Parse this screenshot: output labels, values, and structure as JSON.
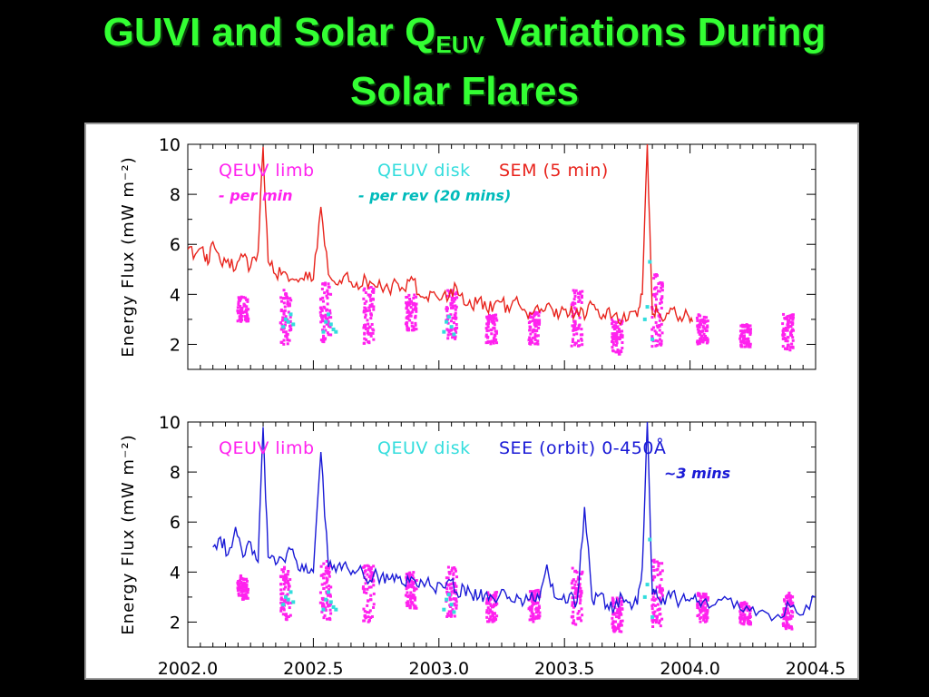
{
  "title": {
    "part1": "GUVI and Solar Q",
    "subscript": "EUV",
    "part2": " Variations During",
    "line2": "Solar Flares"
  },
  "colors": {
    "title_green": "#33ff33",
    "qeuv_limb": "#ff22ee",
    "qeuv_disk": "#33dddd",
    "sem": "#e8231c",
    "see": "#1a1ad6"
  },
  "chart_data": [
    {
      "type": "scatter",
      "panel": "top",
      "ylabel": "Energy Flux (mW m⁻²)",
      "xlim": [
        2002.0,
        2004.5
      ],
      "ylim": [
        1,
        10
      ],
      "y_ticks": [
        "2",
        "4",
        "6",
        "8",
        "10"
      ],
      "legend": [
        {
          "label": "QEUV limb",
          "color": "#ff22ee"
        },
        {
          "label": "QEUV disk",
          "color": "#33dddd"
        },
        {
          "label": "SEM (5 min)",
          "color": "#e8231c"
        }
      ],
      "annotations": [
        {
          "text": "- per min",
          "color": "#ff22ee"
        },
        {
          "text": "- per rev (20 mins)",
          "color": "#00bbbb"
        }
      ],
      "series": [
        {
          "name": "SEM (5 min)",
          "kind": "line",
          "color": "#e8231c",
          "x": [
            2002.0,
            2002.03,
            2002.06,
            2002.08,
            2002.1,
            2002.13,
            2002.16,
            2002.19,
            2002.22,
            2002.25,
            2002.28,
            2002.3,
            2002.32,
            2002.35,
            2002.38,
            2002.41,
            2002.44,
            2002.47,
            2002.5,
            2002.53,
            2002.56,
            2002.59,
            2002.62,
            2002.65,
            2002.68,
            2002.71,
            2002.74,
            2002.77,
            2002.8,
            2002.83,
            2002.86,
            2002.89,
            2002.92,
            2002.95,
            2002.98,
            2003.01,
            2003.04,
            2003.07,
            2003.1,
            2003.13,
            2003.16,
            2003.19,
            2003.22,
            2003.25,
            2003.28,
            2003.31,
            2003.34,
            2003.37,
            2003.4,
            2003.43,
            2003.46,
            2003.49,
            2003.52,
            2003.55,
            2003.58,
            2003.61,
            2003.64,
            2003.67,
            2003.7,
            2003.73,
            2003.76,
            2003.79,
            2003.81,
            2003.83,
            2003.85,
            2003.87,
            2003.9,
            2003.93,
            2003.96,
            2003.99,
            2004.01
          ],
          "y": [
            5.8,
            5.6,
            5.9,
            5.2,
            6.1,
            5.3,
            5.4,
            5.0,
            5.5,
            5.1,
            5.7,
            9.9,
            5.3,
            4.8,
            4.9,
            4.6,
            4.5,
            4.9,
            4.6,
            7.5,
            4.8,
            4.4,
            4.7,
            4.5,
            4.2,
            4.6,
            4.4,
            4.3,
            4.2,
            4.5,
            4.2,
            4.7,
            4.0,
            3.9,
            4.1,
            3.8,
            3.9,
            4.3,
            3.6,
            3.5,
            3.8,
            3.4,
            3.6,
            3.7,
            3.3,
            3.9,
            3.4,
            3.2,
            3.3,
            3.6,
            3.1,
            3.5,
            3.2,
            3.4,
            3.0,
            3.6,
            3.1,
            3.4,
            3.2,
            3.0,
            3.3,
            3.1,
            4.0,
            10.0,
            3.2,
            3.3,
            3.0,
            3.4,
            3.1,
            3.2,
            2.9
          ]
        },
        {
          "name": "QEUV limb",
          "kind": "cluster",
          "color": "#ff22ee",
          "x": [
            2002.22,
            2002.39,
            2002.55,
            2002.72,
            2002.89,
            2003.05,
            2003.21,
            2003.38,
            2003.55,
            2003.71,
            2003.87,
            2004.05,
            2004.22,
            2004.39
          ],
          "ymin": [
            2.9,
            2.0,
            2.1,
            2.0,
            2.5,
            2.2,
            2.0,
            2.0,
            1.9,
            1.6,
            1.8,
            2.0,
            1.9,
            1.7
          ],
          "ymax": [
            3.9,
            4.2,
            4.5,
            4.3,
            4.0,
            4.2,
            3.2,
            3.3,
            4.2,
            3.0,
            4.8,
            3.2,
            2.8,
            3.2
          ]
        },
        {
          "name": "QEUV disk",
          "kind": "points",
          "color": "#33dddd",
          "x": [
            2002.38,
            2002.39,
            2002.4,
            2002.41,
            2002.42,
            2002.54,
            2002.55,
            2002.56,
            2002.57,
            2002.58,
            2002.59,
            2003.02,
            2003.03,
            2003.04,
            2003.05,
            2003.06,
            2003.82,
            2003.83,
            2003.84,
            2003.85
          ],
          "y": [
            2.7,
            3.0,
            2.9,
            3.2,
            2.8,
            2.5,
            2.9,
            3.2,
            2.8,
            2.6,
            2.5,
            2.5,
            2.9,
            3.1,
            2.7,
            2.4,
            3.0,
            3.5,
            5.3,
            2.2
          ]
        }
      ]
    },
    {
      "type": "scatter",
      "panel": "bottom",
      "ylabel": "Energy Flux (mW m⁻²)",
      "xlim": [
        2002.0,
        2004.5
      ],
      "ylim": [
        1,
        10
      ],
      "y_ticks": [
        "2",
        "4",
        "6",
        "8",
        "10"
      ],
      "x_ticks": [
        "2002.0",
        "2002.5",
        "2003.0",
        "2003.5",
        "2004.0",
        "2004.5"
      ],
      "legend": [
        {
          "label": "QEUV limb",
          "color": "#ff22ee"
        },
        {
          "label": "QEUV disk",
          "color": "#33dddd"
        },
        {
          "label": "SEE (orbit) 0-450Å",
          "color": "#1a1ad6"
        }
      ],
      "annotations": [
        {
          "text": "~3 mins",
          "color": "#1a1ad6"
        }
      ],
      "series": [
        {
          "name": "SEE (orbit) 0-450Å",
          "kind": "line",
          "color": "#1a1ad6",
          "x": [
            2002.1,
            2002.13,
            2002.16,
            2002.19,
            2002.22,
            2002.25,
            2002.28,
            2002.3,
            2002.32,
            2002.35,
            2002.38,
            2002.41,
            2002.44,
            2002.47,
            2002.5,
            2002.53,
            2002.56,
            2002.59,
            2002.62,
            2002.65,
            2002.68,
            2002.71,
            2002.74,
            2002.77,
            2002.8,
            2002.83,
            2002.86,
            2002.89,
            2002.92,
            2002.95,
            2002.98,
            2003.01,
            2003.04,
            2003.07,
            2003.1,
            2003.13,
            2003.16,
            2003.19,
            2003.22,
            2003.25,
            2003.28,
            2003.31,
            2003.34,
            2003.37,
            2003.4,
            2003.43,
            2003.46,
            2003.49,
            2003.52,
            2003.55,
            2003.58,
            2003.61,
            2003.64,
            2003.67,
            2003.7,
            2003.73,
            2003.76,
            2003.79,
            2003.81,
            2003.83,
            2003.85,
            2003.87,
            2003.9,
            2003.93,
            2003.96,
            2003.99,
            2004.02,
            2004.05,
            2004.1,
            2004.15,
            2004.2,
            2004.25,
            2004.3,
            2004.35,
            2004.4,
            2004.45,
            2004.5
          ],
          "y": [
            5.0,
            5.4,
            4.7,
            5.8,
            4.6,
            5.2,
            4.4,
            9.8,
            4.6,
            4.3,
            4.5,
            4.9,
            4.1,
            4.3,
            4.0,
            8.8,
            4.2,
            4.0,
            4.3,
            3.9,
            4.1,
            3.7,
            3.9,
            3.8,
            3.7,
            3.9,
            3.5,
            3.8,
            3.4,
            3.6,
            3.3,
            3.5,
            3.7,
            3.2,
            3.4,
            3.1,
            3.0,
            3.2,
            2.9,
            3.3,
            3.0,
            3.1,
            2.8,
            3.2,
            2.9,
            4.3,
            3.0,
            2.9,
            3.1,
            2.8,
            6.6,
            2.9,
            3.1,
            2.7,
            2.6,
            3.0,
            2.8,
            2.7,
            4.2,
            10.0,
            3.1,
            3.0,
            2.7,
            3.2,
            2.8,
            2.9,
            3.1,
            2.8,
            2.7,
            2.9,
            2.5,
            2.6,
            2.4,
            2.3,
            2.6,
            2.3,
            3.0
          ]
        },
        {
          "name": "QEUV limb",
          "kind": "cluster",
          "color": "#ff22ee",
          "x": [
            2002.22,
            2002.39,
            2002.55,
            2002.72,
            2002.89,
            2003.05,
            2003.21,
            2003.38,
            2003.55,
            2003.71,
            2003.87,
            2004.05,
            2004.22,
            2004.39
          ],
          "ymin": [
            2.9,
            2.0,
            2.1,
            2.0,
            2.5,
            2.2,
            2.0,
            2.0,
            1.9,
            1.6,
            1.8,
            2.0,
            1.9,
            1.7
          ],
          "ymax": [
            3.9,
            4.2,
            4.5,
            4.3,
            4.0,
            4.2,
            3.2,
            3.3,
            4.2,
            3.0,
            4.8,
            3.2,
            2.8,
            3.2
          ]
        },
        {
          "name": "QEUV disk",
          "kind": "points",
          "color": "#33dddd",
          "x": [
            2002.38,
            2002.39,
            2002.4,
            2002.41,
            2002.42,
            2002.54,
            2002.55,
            2002.56,
            2002.57,
            2002.58,
            2002.59,
            2003.02,
            2003.03,
            2003.04,
            2003.05,
            2003.06,
            2003.82,
            2003.83,
            2003.84,
            2003.85
          ],
          "y": [
            2.7,
            3.0,
            2.9,
            3.2,
            2.8,
            2.5,
            2.9,
            3.2,
            2.8,
            2.6,
            2.5,
            2.5,
            2.9,
            3.1,
            2.7,
            2.4,
            3.0,
            3.5,
            5.3,
            2.2
          ]
        }
      ]
    }
  ]
}
